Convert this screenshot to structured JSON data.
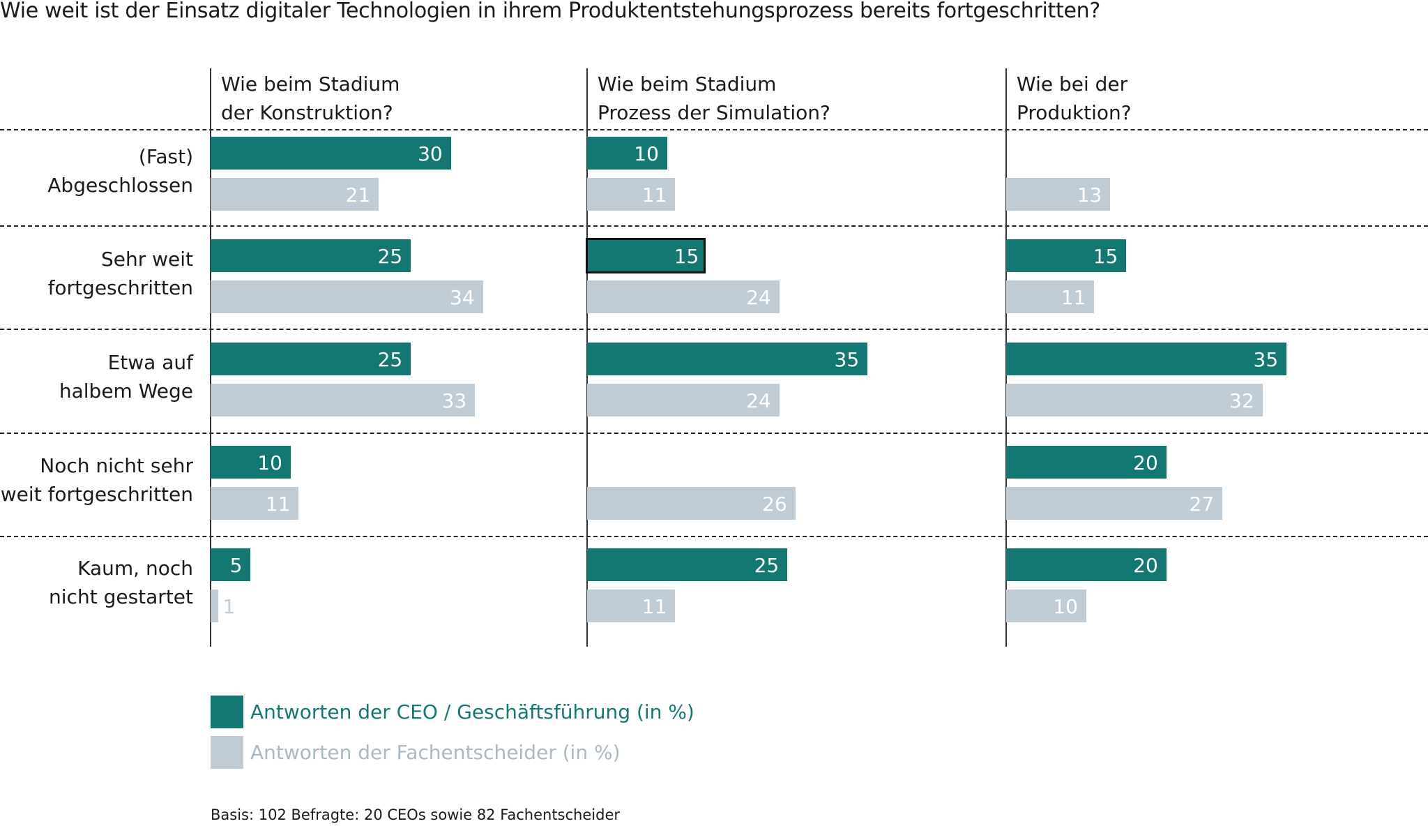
{
  "chart_data": {
    "type": "bar",
    "orientation": "horizontal",
    "title": "Wie weit ist der Einsatz digitaler Technologien in ihrem Produktentstehungsprozess bereits fortgeschritten?",
    "categories": [
      [
        "(Fast)",
        "Abgeschlossen"
      ],
      [
        "Sehr weit",
        "fortgeschritten"
      ],
      [
        "Etwa auf",
        "halbem Wege"
      ],
      [
        "Noch nicht sehr",
        "weit fortgeschritten"
      ],
      [
        "Kaum, noch",
        "nicht gestartet"
      ]
    ],
    "panels": [
      {
        "title": [
          "Wie beim Stadium",
          "der Konstruktion?"
        ],
        "series": [
          {
            "name": "ceo",
            "values": [
              30,
              25,
              25,
              10,
              5
            ]
          },
          {
            "name": "fach",
            "values": [
              21,
              34,
              33,
              11,
              1
            ]
          }
        ]
      },
      {
        "title": [
          "Wie beim Stadium",
          "Prozess der Simulation?"
        ],
        "series": [
          {
            "name": "ceo",
            "values": [
              10,
              15,
              35,
              null,
              25
            ]
          },
          {
            "name": "fach",
            "values": [
              11,
              24,
              24,
              26,
              11
            ]
          }
        ]
      },
      {
        "title": [
          "Wie bei der",
          "Produktion?"
        ],
        "series": [
          {
            "name": "ceo",
            "values": [
              null,
              15,
              35,
              20,
              20
            ]
          },
          {
            "name": "fach",
            "values": [
              13,
              11,
              32,
              27,
              10
            ]
          }
        ]
      }
    ],
    "legend": [
      {
        "key": "ceo",
        "label": "Antworten der CEO / Geschäftsführung (in %)",
        "color": "#137873"
      },
      {
        "key": "fach",
        "label": "Antworten der Fachentscheider (in %)",
        "color": "#bfccd5"
      }
    ],
    "legend_placement": "bottom-left",
    "grid": false,
    "xlim": [
      0,
      40
    ],
    "selected": {
      "panel": 1,
      "category": 1,
      "series": "ceo"
    },
    "footnote": "Basis: 102 Befragte: 20 CEOs sowie 82 Fachentscheider"
  }
}
